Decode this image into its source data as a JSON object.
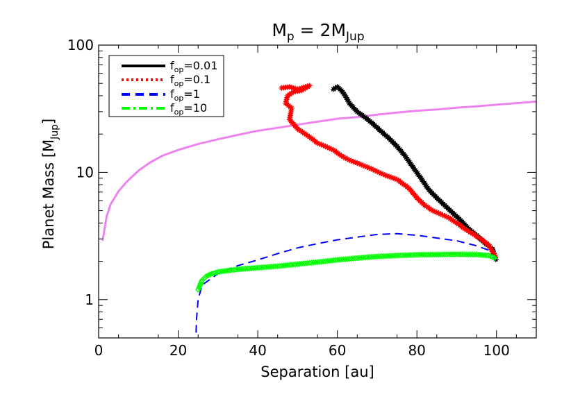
{
  "chart_data": {
    "type": "line",
    "title": {
      "base": "M",
      "sub": "p",
      "mid": " = 2M",
      "sub2": "Jup"
    },
    "xlabel": "Separation [au]",
    "ylabel": {
      "base": "Planet Mass [M",
      "sub": "Jup",
      "end": "]"
    },
    "xlim": [
      0,
      110
    ],
    "ylim": [
      0.5,
      100
    ],
    "yscale": "log",
    "xticks": [
      0,
      20,
      40,
      60,
      80,
      100
    ],
    "xtick_labels": [
      "0",
      "20",
      "40",
      "60",
      "80",
      "100"
    ],
    "yticks": [
      1,
      10,
      100
    ],
    "ytick_labels": [
      "1",
      "10",
      "100"
    ],
    "grid": false,
    "legend_position": "top-left",
    "legend": [
      {
        "base": "f",
        "sub": "op",
        "rest": "=0.01",
        "color": "#000000",
        "dash": "solid"
      },
      {
        "base": "f",
        "sub": "op",
        "rest": "=0.1",
        "color": "#ff0000",
        "dash": "dotted"
      },
      {
        "base": "f",
        "sub": "op",
        "rest": "=1",
        "color": "#0000ff",
        "dash": "dashed"
      },
      {
        "base": "f",
        "sub": "op",
        "rest": "=10",
        "color": "#00ff00",
        "dash": "dashdot"
      }
    ],
    "series": [
      {
        "color": "#ee82ee",
        "dash": "solid",
        "marker": "none",
        "x": [
          1,
          2,
          3,
          5,
          7,
          10,
          13,
          16,
          20,
          25,
          30,
          35,
          40,
          45,
          50,
          55,
          60,
          65,
          70,
          75,
          80,
          85,
          90,
          95,
          100,
          105,
          110
        ],
        "y": [
          2.9,
          4.5,
          5.6,
          7.1,
          8.4,
          10.3,
          12.0,
          13.5,
          15.0,
          16.7,
          18.2,
          19.7,
          21.2,
          22.4,
          23.7,
          25.0,
          26.4,
          27.2,
          28.4,
          29.5,
          30.5,
          31.2,
          32.2,
          33.0,
          34.0,
          35.0,
          36.0
        ]
      },
      {
        "color": "#000000",
        "dash": "solid",
        "marker": "star",
        "x": [
          59,
          60,
          61,
          62,
          63,
          65,
          67,
          69,
          71,
          73,
          75,
          77,
          79,
          81,
          83,
          85,
          87,
          89,
          91,
          93,
          95,
          97,
          99,
          100
        ],
        "y": [
          45,
          47,
          44,
          40,
          35,
          30,
          27,
          24,
          21,
          18.5,
          16,
          13.5,
          11,
          9,
          7.3,
          6.3,
          5.5,
          4.8,
          4.2,
          3.6,
          3.2,
          2.8,
          2.5,
          2.0
        ]
      },
      {
        "color": "#ff0000",
        "dash": "dotted",
        "marker": "star",
        "x": [
          46,
          48,
          50,
          53,
          51,
          49,
          47.5,
          47,
          48.5,
          48,
          50,
          53,
          55,
          57,
          59,
          61,
          63,
          66,
          69,
          72,
          75,
          78,
          80,
          82,
          84,
          86,
          88,
          90,
          92,
          94,
          96,
          98,
          100
        ],
        "y": [
          46,
          47,
          45,
          48,
          44,
          43,
          40,
          35,
          32,
          26,
          22,
          19,
          17,
          16,
          15,
          13.5,
          12.5,
          11.5,
          10.5,
          9.5,
          8.8,
          7.5,
          6.3,
          5.5,
          5.0,
          4.7,
          4.4,
          4.0,
          3.6,
          3.3,
          3.0,
          2.7,
          2.1
        ]
      },
      {
        "color": "#0000ff",
        "dash": "dashed",
        "marker": "none",
        "x": [
          24.5,
          24.6,
          25,
          26,
          30,
          35,
          40,
          45,
          50,
          55,
          60,
          65,
          70,
          75,
          80,
          85,
          90,
          95,
          98,
          100
        ],
        "y": [
          0.55,
          0.7,
          1.0,
          1.3,
          1.6,
          1.85,
          2.05,
          2.3,
          2.55,
          2.75,
          2.95,
          3.1,
          3.25,
          3.3,
          3.2,
          3.05,
          2.9,
          2.65,
          2.45,
          2.0
        ]
      },
      {
        "color": "#00ff00",
        "dash": "dashdot",
        "marker": "diamond",
        "x": [
          25,
          25.5,
          26,
          27,
          28,
          30,
          33,
          36,
          40,
          45,
          50,
          55,
          60,
          65,
          70,
          75,
          80,
          85,
          90,
          95,
          98,
          100
        ],
        "y": [
          1.2,
          1.3,
          1.42,
          1.52,
          1.58,
          1.65,
          1.7,
          1.74,
          1.78,
          1.83,
          1.9,
          1.97,
          2.05,
          2.12,
          2.18,
          2.22,
          2.25,
          2.26,
          2.27,
          2.26,
          2.22,
          2.1
        ]
      }
    ]
  }
}
